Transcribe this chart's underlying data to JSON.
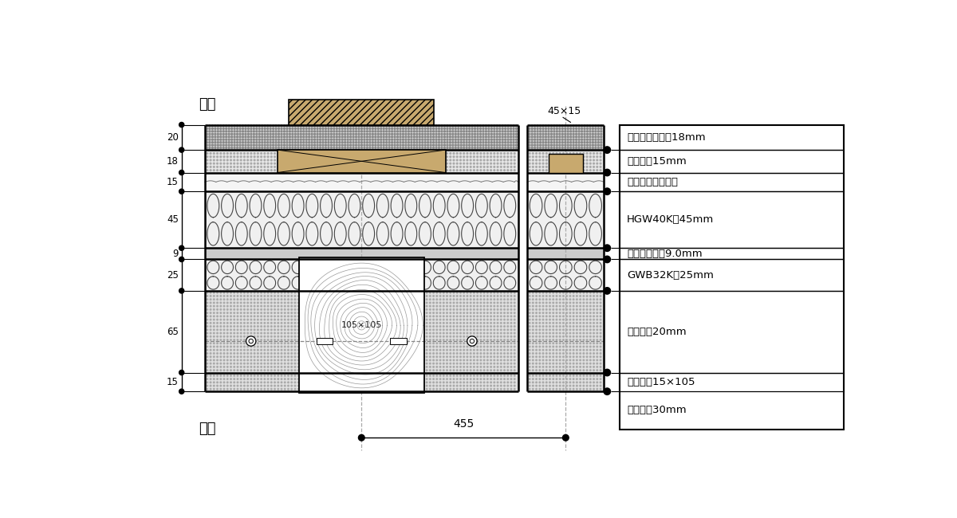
{
  "bg_color": "#ffffff",
  "outer_label": "外側",
  "inner_label": "内側",
  "dim_label_455": "455",
  "dim_label_45x15": "45×15",
  "wood_label": "105×105",
  "layer_labels": [
    "モルタル塗り　18mm",
    "通気層　15mm",
    "タイベックシート",
    "HGW40K　45mm",
    "構造用合板　9.0mm",
    "GWB32K　25mm",
    "土塗壁　20mm",
    "通し貫　15×105",
    "土塗壁　30mm"
  ],
  "dim_labels_left": [
    "20",
    "18",
    "15",
    "45",
    "9",
    "25",
    "65",
    "15"
  ],
  "wood_fill": "#c8a96e",
  "hatch_fill": "#c8a96e",
  "line_color": "#000000"
}
